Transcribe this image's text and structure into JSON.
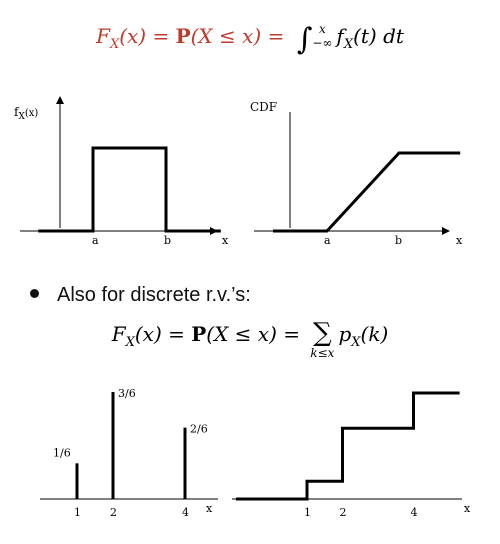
{
  "formula_continuous": {
    "color": "#c0392b",
    "lhs": "F",
    "lhs_sub": "X",
    "lhs_arg": "(x) = ",
    "prob": "P",
    "prob_arg": "(X ≤ x) =",
    "rhs_color": "#000000",
    "integral_sign": "∫",
    "int_upper": "x",
    "int_lower": "−∞",
    "integrand": "f",
    "integrand_sub": "X",
    "integrand_arg": "(t) dt"
  },
  "bullet": {
    "text": "Also for discrete r.v.’s:"
  },
  "formula_discrete": {
    "lhs": "F",
    "lhs_sub": "X",
    "lhs_arg": "(x) = ",
    "prob": "P",
    "prob_arg": "(X ≤ x) =",
    "sum_sign": "∑",
    "sum_lower": "k≤x",
    "term": "p",
    "term_sub": "X",
    "term_arg": "(k)"
  },
  "chart_data": [
    {
      "type": "line",
      "ylabel": "f",
      "ylabel_sub": "X",
      "ylabel_arg": "(x)",
      "xlabel": "x",
      "tick_labels": [
        "a",
        "b"
      ],
      "points": [
        [
          -1.5,
          0
        ],
        [
          0,
          0
        ],
        [
          0,
          1
        ],
        [
          2,
          1
        ],
        [
          2,
          0
        ],
        [
          3.5,
          0
        ]
      ]
    },
    {
      "type": "line",
      "ylabel": "CDF",
      "xlabel": "x",
      "tick_labels": [
        "a",
        "b"
      ],
      "points": [
        [
          -1.5,
          0
        ],
        [
          0,
          0
        ],
        [
          2,
          1
        ],
        [
          3.7,
          1
        ]
      ]
    },
    {
      "type": "bar",
      "xlabel": "x",
      "x": [
        1,
        2,
        4
      ],
      "values": [
        0.1667,
        0.5,
        0.3333
      ],
      "data_labels": [
        "1/6",
        "3/6",
        "2/6"
      ],
      "tick_labels": [
        "1",
        "2",
        "4"
      ]
    },
    {
      "type": "line",
      "xlabel": "x",
      "tick_labels": [
        "1",
        "2",
        "4"
      ],
      "points": [
        [
          -1,
          0
        ],
        [
          1,
          0
        ],
        [
          1,
          0.1667
        ],
        [
          2,
          0.1667
        ],
        [
          2,
          0.6667
        ],
        [
          4,
          0.6667
        ],
        [
          4,
          1
        ],
        [
          5.3,
          1
        ]
      ]
    }
  ]
}
